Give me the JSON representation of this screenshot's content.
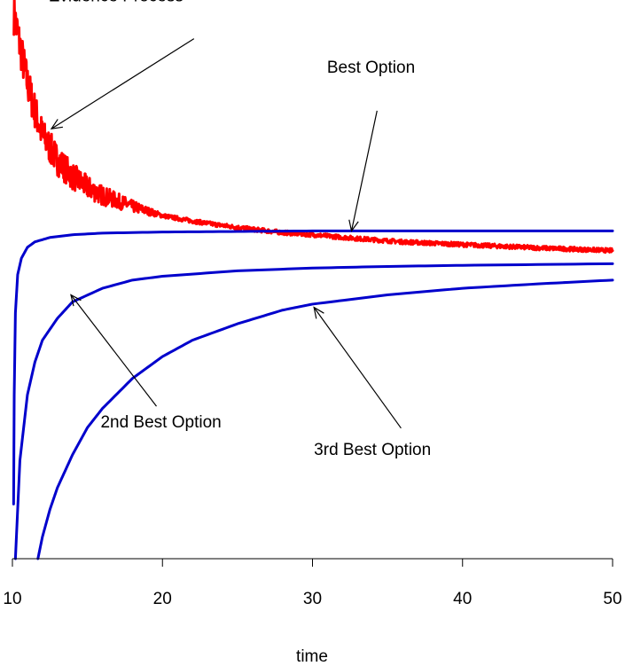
{
  "chart_data": {
    "type": "line",
    "title": "",
    "xlabel": "time",
    "ylabel": "",
    "xlim": [
      10,
      50
    ],
    "ylim": [
      0,
      1
    ],
    "grid": false,
    "y_axis_shown": false,
    "x_ticks": [
      10,
      20,
      30,
      40,
      50
    ],
    "x_tick_labels": [
      "10",
      "20",
      "30",
      "40",
      "50"
    ],
    "series": [
      {
        "name": "Evidence Process",
        "color": "#ff0000",
        "noisy": true,
        "x": [
          10.1,
          10.5,
          11,
          11.5,
          12,
          13,
          14,
          15,
          16,
          18,
          20,
          22,
          24,
          26,
          28,
          30,
          33,
          36,
          40,
          45,
          50
        ],
        "y": [
          0.998,
          0.94,
          0.87,
          0.82,
          0.775,
          0.73,
          0.7,
          0.68,
          0.665,
          0.645,
          0.628,
          0.618,
          0.61,
          0.603,
          0.597,
          0.593,
          0.586,
          0.58,
          0.575,
          0.569,
          0.564
        ]
      },
      {
        "name": "Best Option",
        "color": "#0000cc",
        "noisy": false,
        "x": [
          10.08,
          10.12,
          10.2,
          10.35,
          10.6,
          11,
          11.5,
          12.5,
          14,
          16,
          20,
          25,
          30,
          40,
          50
        ],
        "y": [
          0.1,
          0.3,
          0.45,
          0.52,
          0.55,
          0.57,
          0.58,
          0.588,
          0.593,
          0.596,
          0.598,
          0.599,
          0.6,
          0.6,
          0.6
        ]
      },
      {
        "name": "2nd Best Option",
        "color": "#0000cc",
        "noisy": false,
        "x": [
          10.2,
          10.5,
          11,
          11.5,
          12,
          13,
          14,
          16,
          18,
          20,
          25,
          30,
          35,
          40,
          50
        ],
        "y": [
          0.0,
          0.18,
          0.3,
          0.36,
          0.4,
          0.44,
          0.47,
          0.495,
          0.51,
          0.517,
          0.527,
          0.532,
          0.535,
          0.537,
          0.54
        ]
      },
      {
        "name": "3rd Best Option",
        "color": "#0000cc",
        "noisy": false,
        "x": [
          11.7,
          12,
          12.5,
          13,
          14,
          15,
          16,
          18,
          20,
          22,
          25,
          28,
          30,
          35,
          40,
          45,
          50
        ],
        "y": [
          0.0,
          0.04,
          0.09,
          0.13,
          0.19,
          0.24,
          0.275,
          0.33,
          0.37,
          0.4,
          0.43,
          0.455,
          0.466,
          0.483,
          0.495,
          0.503,
          0.51
        ]
      }
    ],
    "annotations": [
      {
        "label": "Evidence Process",
        "text_x": 16.9,
        "text_y": 1.02,
        "arrow_from": [
          22.1,
          0.952
        ],
        "arrow_to": [
          12.6,
          0.787
        ]
      },
      {
        "label": "Best Option",
        "text_x": 33.9,
        "text_y": 0.89,
        "arrow_from": [
          34.3,
          0.82
        ],
        "arrow_to": [
          32.6,
          0.6
        ]
      },
      {
        "label": "2nd Best Option",
        "text_x": 19.9,
        "text_y": 0.24,
        "arrow_from": [
          19.6,
          0.279
        ],
        "arrow_to": [
          13.9,
          0.483
        ]
      },
      {
        "label": "3rd Best Option",
        "text_x": 34.0,
        "text_y": 0.19,
        "arrow_from": [
          35.9,
          0.239
        ],
        "arrow_to": [
          30.1,
          0.46
        ]
      }
    ]
  }
}
